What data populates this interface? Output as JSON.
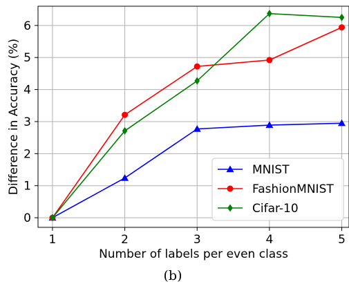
{
  "caption": "(b)",
  "chart_data": {
    "type": "line",
    "xlabel": "Number of labels per even class",
    "ylabel": "Difference in Accuracy (%)",
    "x": [
      1,
      2,
      3,
      4,
      5
    ],
    "xlim": [
      0.8,
      5.1
    ],
    "ylim": [
      -0.3,
      6.6
    ],
    "xticks": [
      "1",
      "2",
      "3",
      "4",
      "5"
    ],
    "yticks": [
      "0",
      "1",
      "2",
      "3",
      "4",
      "5",
      "6"
    ],
    "grid": true,
    "legend_position": "lower-right",
    "series": [
      {
        "name": "MNIST",
        "values": [
          0,
          1.24,
          2.77,
          2.89,
          2.95
        ],
        "color": "#0000ff",
        "marker": "triangle"
      },
      {
        "name": "FashionMNIST",
        "values": [
          0,
          3.21,
          4.72,
          4.92,
          5.94
        ],
        "color": "#ff0000",
        "marker": "circle"
      },
      {
        "name": "Cifar-10",
        "values": [
          0,
          2.71,
          4.27,
          6.37,
          6.25
        ],
        "color": "#008000",
        "marker": "diamond"
      }
    ]
  }
}
